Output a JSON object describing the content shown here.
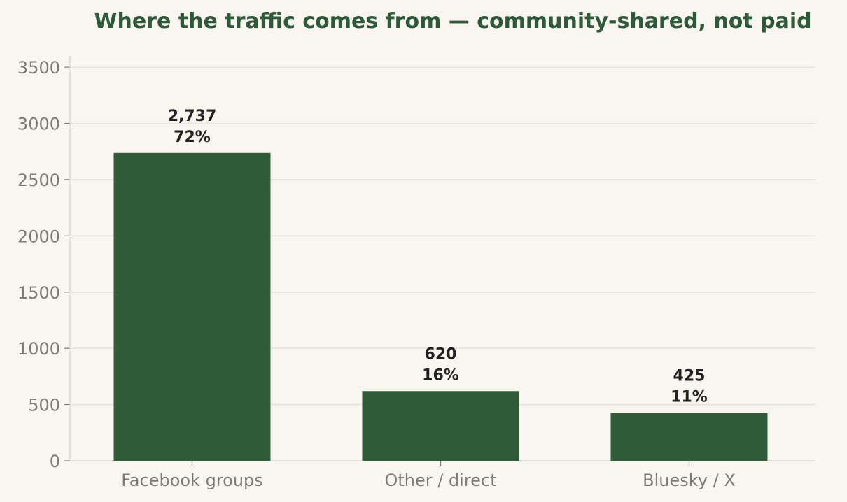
{
  "colors": {
    "background": "#f9f6ef",
    "bar": "#305c3a",
    "title": "#2e5a3a",
    "grid": "#e5e3dc",
    "axis": "#dcdad3",
    "tick_text": "#7d7d74",
    "label_text": "#222222"
  },
  "chart_data": {
    "type": "bar",
    "title": "Where the traffic comes from — community-shared, not paid",
    "xlabel": "",
    "ylabel": "",
    "categories": [
      "Facebook groups",
      "Other / direct",
      "Bluesky / X"
    ],
    "values": [
      2737,
      620,
      425
    ],
    "value_labels": [
      "2,737",
      "620",
      "425"
    ],
    "percent_labels": [
      "72%",
      "16%",
      "11%"
    ],
    "ylim": [
      0,
      3600
    ],
    "yticks": [
      0,
      500,
      1000,
      1500,
      2000,
      2500,
      3000,
      3500
    ],
    "ytick_labels": [
      "0",
      "500",
      "1000",
      "1500",
      "2000",
      "2500",
      "3000",
      "3500"
    ],
    "grid": true,
    "legend": "none"
  }
}
